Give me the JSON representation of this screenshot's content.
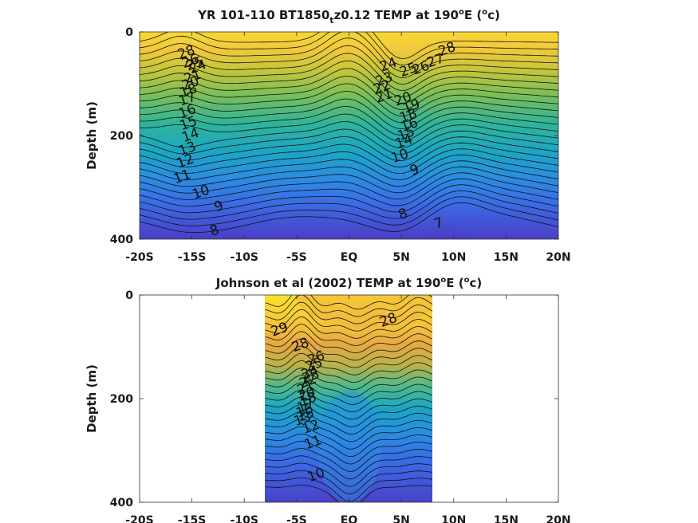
{
  "chart_data": [
    {
      "type": "contour",
      "title": "YR 101-110 BT1850",
      "title_sub": "t",
      "title_rest": "z0.12 TEMP at 190",
      "title_sup": "o",
      "title_tail": "E (",
      "title_unit_sup": "o",
      "title_unit": "c)",
      "ylabel": "Depth (m)",
      "xlim": [
        -20,
        20
      ],
      "ylim": [
        0,
        400
      ],
      "x_ticks": [
        -20,
        -15,
        -10,
        -5,
        0,
        5,
        10,
        15,
        20
      ],
      "x_tick_labels": [
        "-20S",
        "-15S",
        "-10S",
        "-5S",
        "EQ",
        "5N",
        "10N",
        "15N",
        "20N"
      ],
      "y_ticks": [
        0,
        200,
        400
      ],
      "y_tick_labels": [
        "0",
        "200",
        "400"
      ],
      "data_xrange": [
        -20,
        20
      ],
      "contour_labels": [
        {
          "text": "28",
          "x": -15.4,
          "y": 38
        },
        {
          "text": "26",
          "x": -15.0,
          "y": 55
        },
        {
          "text": "25",
          "x": -14.6,
          "y": 60
        },
        {
          "text": "24",
          "x": -14.3,
          "y": 66
        },
        {
          "text": "21",
          "x": -14.8,
          "y": 85
        },
        {
          "text": "20",
          "x": -15.0,
          "y": 98
        },
        {
          "text": "18",
          "x": -15.2,
          "y": 112
        },
        {
          "text": "17",
          "x": -15.3,
          "y": 128
        },
        {
          "text": "16",
          "x": -15.3,
          "y": 152
        },
        {
          "text": "15",
          "x": -15.2,
          "y": 175
        },
        {
          "text": "14",
          "x": -15.0,
          "y": 198
        },
        {
          "text": "13",
          "x": -15.3,
          "y": 224
        },
        {
          "text": "12",
          "x": -15.5,
          "y": 248
        },
        {
          "text": "11",
          "x": -15.8,
          "y": 278
        },
        {
          "text": "10",
          "x": -14.0,
          "y": 308
        },
        {
          "text": "9",
          "x": -12.3,
          "y": 335
        },
        {
          "text": "8",
          "x": -12.7,
          "y": 382
        },
        {
          "text": "28",
          "x": 9.5,
          "y": 32
        },
        {
          "text": "27",
          "x": 8.4,
          "y": 54
        },
        {
          "text": "26",
          "x": 7.0,
          "y": 68
        },
        {
          "text": "25",
          "x": 5.8,
          "y": 72
        },
        {
          "text": "24",
          "x": 3.9,
          "y": 62
        },
        {
          "text": "23",
          "x": 3.5,
          "y": 90
        },
        {
          "text": "22",
          "x": 3.3,
          "y": 105
        },
        {
          "text": "21",
          "x": 3.5,
          "y": 122
        },
        {
          "text": "20",
          "x": 5.3,
          "y": 128
        },
        {
          "text": "19",
          "x": 6.1,
          "y": 142
        },
        {
          "text": "18",
          "x": 5.8,
          "y": 160
        },
        {
          "text": "16",
          "x": 5.9,
          "y": 178
        },
        {
          "text": "15",
          "x": 5.6,
          "y": 195
        },
        {
          "text": "14",
          "x": 5.4,
          "y": 210
        },
        {
          "text": "10",
          "x": 5.0,
          "y": 238
        },
        {
          "text": "9",
          "x": 6.4,
          "y": 265
        },
        {
          "text": "8",
          "x": 5.3,
          "y": 350
        },
        {
          "text": "7",
          "x": 8.7,
          "y": 368
        }
      ]
    },
    {
      "type": "contour",
      "title": "Johnson et al (2002) TEMP at 190",
      "title_sup": "o",
      "title_tail": "E (",
      "title_unit_sup": "o",
      "title_unit": "c)",
      "ylabel": "Depth (m)",
      "xlim": [
        -20,
        20
      ],
      "ylim": [
        0,
        400
      ],
      "x_ticks": [
        -20,
        -15,
        -10,
        -5,
        0,
        5,
        10,
        15,
        20
      ],
      "x_tick_labels": [
        "-20S",
        "-15S",
        "-10S",
        "-5S",
        "EQ",
        "5N",
        "10N",
        "15N",
        "20N"
      ],
      "y_ticks": [
        0,
        200,
        400
      ],
      "y_tick_labels": [
        "0",
        "200",
        "400"
      ],
      "data_xrange": [
        -8,
        8
      ],
      "contour_labels": [
        {
          "text": "29",
          "x": -6.5,
          "y": 65
        },
        {
          "text": "28",
          "x": 3.9,
          "y": 47
        },
        {
          "text": "28",
          "x": -4.5,
          "y": 95
        },
        {
          "text": "26",
          "x": -3.0,
          "y": 120
        },
        {
          "text": "25",
          "x": -3.2,
          "y": 133
        },
        {
          "text": "24",
          "x": -3.6,
          "y": 148
        },
        {
          "text": "23",
          "x": -3.5,
          "y": 155
        },
        {
          "text": "22",
          "x": -3.8,
          "y": 165
        },
        {
          "text": "21",
          "x": -4.0,
          "y": 178
        },
        {
          "text": "20",
          "x": -3.9,
          "y": 190
        },
        {
          "text": "18",
          "x": -3.8,
          "y": 200
        },
        {
          "text": "17",
          "x": -4.0,
          "y": 212
        },
        {
          "text": "16",
          "x": -4.1,
          "y": 222
        },
        {
          "text": "15",
          "x": -4.0,
          "y": 230
        },
        {
          "text": "13",
          "x": -4.3,
          "y": 238
        },
        {
          "text": "12",
          "x": -3.5,
          "y": 253
        },
        {
          "text": "11",
          "x": -3.3,
          "y": 283
        },
        {
          "text": "10",
          "x": -3.0,
          "y": 346
        }
      ]
    }
  ]
}
